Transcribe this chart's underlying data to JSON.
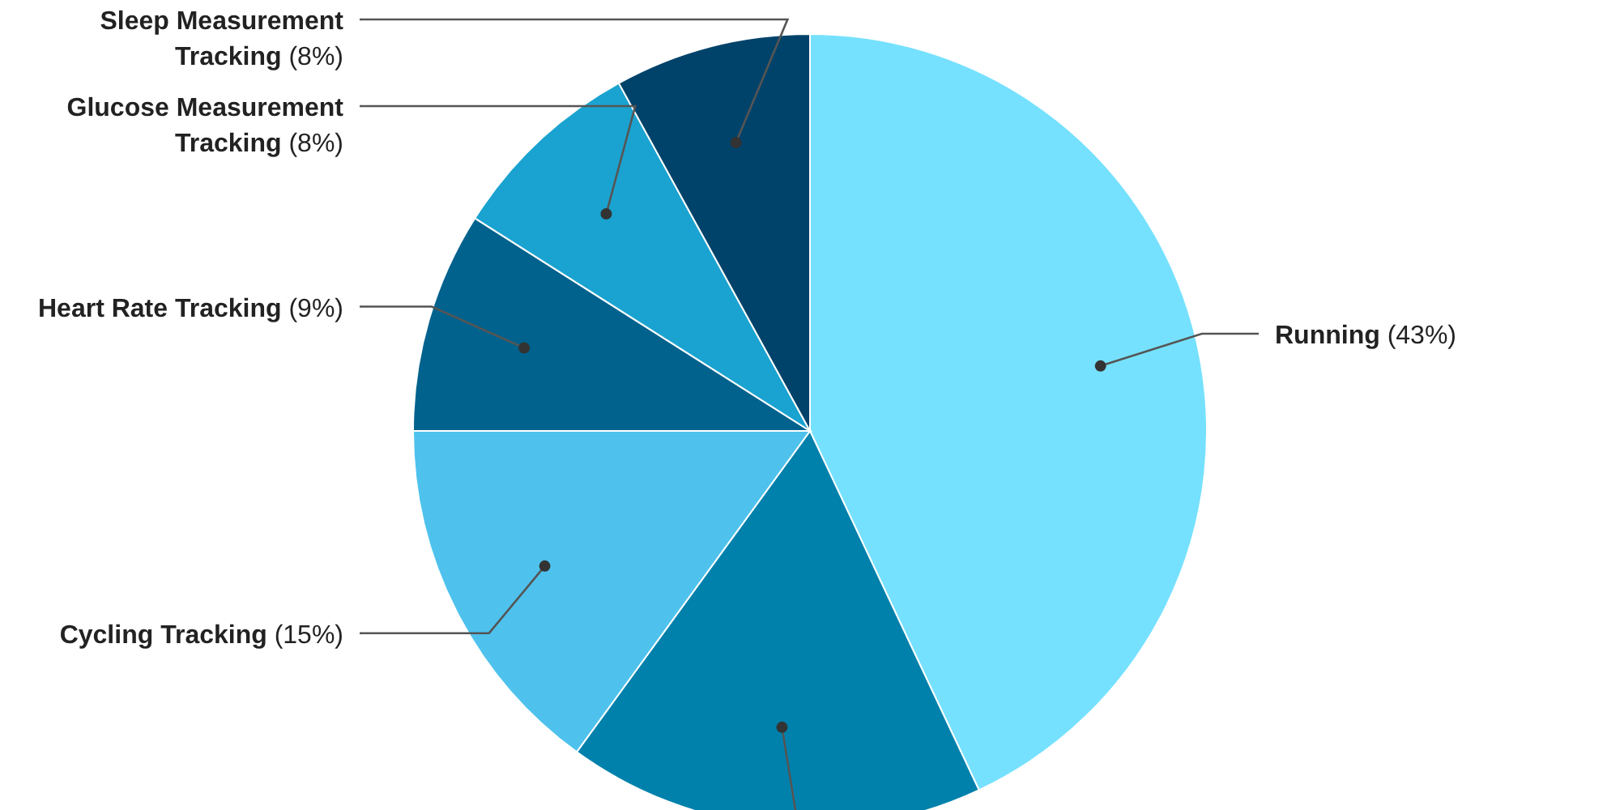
{
  "chart_data": {
    "type": "pie",
    "categories": [
      "Running",
      null,
      "Cycling Tracking",
      "Heart Rate Tracking",
      "Glucose Measurement Tracking",
      "Sleep Measurement Tracking"
    ],
    "values": [
      43,
      17,
      15,
      9,
      8,
      8
    ],
    "colors": [
      "#76e1fe",
      "#0081ac",
      "#4ec2ed",
      "#00628d",
      "#1aa3d0",
      "#00436a"
    ],
    "value_labels": [
      "(43%)",
      null,
      "(15%)",
      "(9%)",
      "(8%)",
      "(8%)"
    ]
  }
}
